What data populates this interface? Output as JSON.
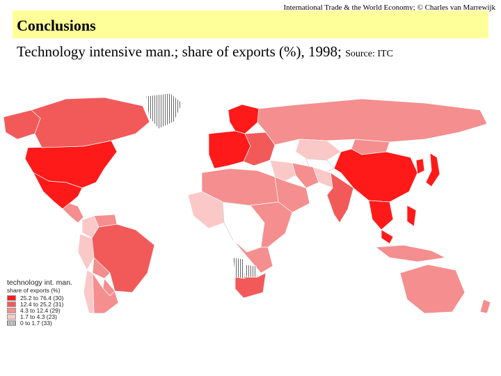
{
  "header": {
    "course": "International Trade & the World Economy;",
    "author": "© Charles van Marrewijk"
  },
  "slide": {
    "title": "Conclusions",
    "subtitle": "Technology intensive man.; share of exports (%), 1998;",
    "source": "Source: ITC"
  },
  "legend": {
    "title": "technology int. man.",
    "subtitle": "share of exports (%)",
    "classes": [
      {
        "range": "25.2 to 76.4",
        "count": "(30)",
        "color": "#ff1a1a"
      },
      {
        "range": "12.4 to 25.2",
        "count": "(31)",
        "color": "#f25a5a"
      },
      {
        "range": "4.3 to 12.4",
        "count": "(29)",
        "color": "#f58e8e"
      },
      {
        "range": "1.7 to 4.3",
        "count": "(23)",
        "color": "#fbc8c8"
      },
      {
        "range": "0 to 1.7",
        "count": "(33)",
        "color": "#ffffff"
      }
    ],
    "nodata_pattern": "hatched"
  },
  "map_data": {
    "variable": "Technology intensive manufactures, share of exports (%)",
    "year": 1998,
    "regions": [
      {
        "name": "United States",
        "class": 0
      },
      {
        "name": "Mexico",
        "class": 0
      },
      {
        "name": "Canada",
        "class": 1
      },
      {
        "name": "Alaska",
        "class": 1
      },
      {
        "name": "Greenland",
        "class": "nodata"
      },
      {
        "name": "Guatemala / Central America",
        "class": 2
      },
      {
        "name": "Colombia",
        "class": 3
      },
      {
        "name": "Venezuela",
        "class": 2
      },
      {
        "name": "Brazil",
        "class": 1
      },
      {
        "name": "Peru",
        "class": 3
      },
      {
        "name": "Bolivia",
        "class": 2
      },
      {
        "name": "Paraguay",
        "class": 2
      },
      {
        "name": "Argentina",
        "class": 2
      },
      {
        "name": "Chile",
        "class": 3
      },
      {
        "name": "Western Europe",
        "class": 0
      },
      {
        "name": "Scandinavia",
        "class": 0
      },
      {
        "name": "Eastern Europe",
        "class": 1
      },
      {
        "name": "Russia",
        "class": 2
      },
      {
        "name": "Kazakhstan",
        "class": 3
      },
      {
        "name": "Central Asia",
        "class": 4
      },
      {
        "name": "Mongolia",
        "class": 2
      },
      {
        "name": "China",
        "class": 0
      },
      {
        "name": "Japan",
        "class": 0
      },
      {
        "name": "Korea",
        "class": 0
      },
      {
        "name": "India",
        "class": 1
      },
      {
        "name": "Pakistan",
        "class": 3
      },
      {
        "name": "Middle East",
        "class": 3
      },
      {
        "name": "Arabian Peninsula",
        "class": 2
      },
      {
        "name": "Iran",
        "class": 2
      },
      {
        "name": "Thailand / Indochina",
        "class": 0
      },
      {
        "name": "Malaysia / Philippines",
        "class": 0
      },
      {
        "name": "Indonesia",
        "class": 2
      },
      {
        "name": "Australia",
        "class": 2
      },
      {
        "name": "New Zealand",
        "class": 2
      },
      {
        "name": "North Africa",
        "class": 2
      },
      {
        "name": "West Africa",
        "class": 3
      },
      {
        "name": "Central Africa",
        "class": 4
      },
      {
        "name": "East Africa",
        "class": 2
      },
      {
        "name": "Southern Africa",
        "class": 2
      },
      {
        "name": "South Africa",
        "class": 1
      },
      {
        "name": "Namibia",
        "class": "nodata"
      },
      {
        "name": "Botswana",
        "class": "nodata"
      }
    ]
  }
}
